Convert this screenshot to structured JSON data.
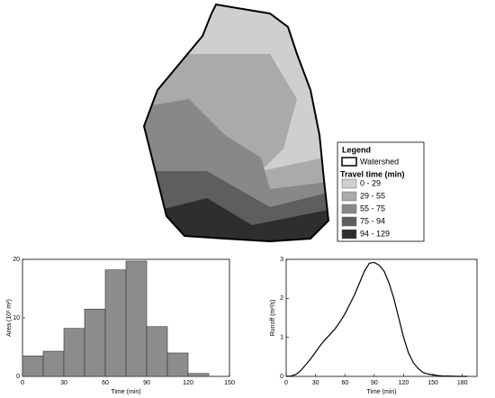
{
  "map": {
    "legend": {
      "title": "Legend",
      "outline_label": "Watershed",
      "subtitle": "Travel time (min)",
      "items": [
        {
          "label": "0 - 29",
          "color": "#cfcfcf"
        },
        {
          "label": "29 - 55",
          "color": "#aaaaaa"
        },
        {
          "label": "55 - 75",
          "color": "#888888"
        },
        {
          "label": "75 - 94",
          "color": "#5e5e5e"
        },
        {
          "label": "94 - 129",
          "color": "#2e2e2e"
        }
      ]
    }
  },
  "chart_data": [
    {
      "type": "histogram",
      "xlabel": "Time (min)",
      "ylabel": "Area (10³ m²)",
      "color": "#8c8c8c",
      "bins": [
        0,
        15,
        30,
        45,
        60,
        75,
        90,
        105,
        120,
        135
      ],
      "values": [
        3.5,
        4.3,
        8.2,
        11.5,
        18.2,
        19.7,
        8.5,
        4,
        0.5
      ],
      "xlim": [
        0,
        150
      ],
      "xticks": [
        0,
        30,
        60,
        90,
        120,
        150
      ],
      "ylim": [
        0,
        20
      ],
      "yticks": [
        0,
        10,
        20
      ]
    },
    {
      "type": "line",
      "xlabel": "Time (min)",
      "ylabel": "Runoff (m³/s)",
      "color": "#000000",
      "x": [
        0,
        5,
        10,
        15,
        20,
        25,
        30,
        35,
        40,
        45,
        50,
        55,
        60,
        65,
        70,
        75,
        80,
        85,
        90,
        95,
        100,
        105,
        110,
        115,
        120,
        125,
        130,
        135,
        140,
        145,
        150,
        155,
        160,
        165,
        170,
        175,
        180,
        185
      ],
      "values": [
        0,
        0.01,
        0.05,
        0.15,
        0.3,
        0.45,
        0.62,
        0.8,
        0.95,
        1.08,
        1.22,
        1.4,
        1.6,
        1.85,
        2.1,
        2.4,
        2.7,
        2.9,
        2.92,
        2.85,
        2.7,
        2.4,
        2.0,
        1.5,
        1.0,
        0.6,
        0.35,
        0.2,
        0.1,
        0.06,
        0.04,
        0.02,
        0.01,
        0.01,
        0.005,
        0,
        0,
        0
      ],
      "xlim": [
        0,
        195
      ],
      "xticks": [
        0,
        30,
        60,
        90,
        120,
        150,
        180
      ],
      "ylim": [
        0,
        3
      ],
      "yticks": [
        0,
        1,
        2,
        3
      ]
    }
  ]
}
